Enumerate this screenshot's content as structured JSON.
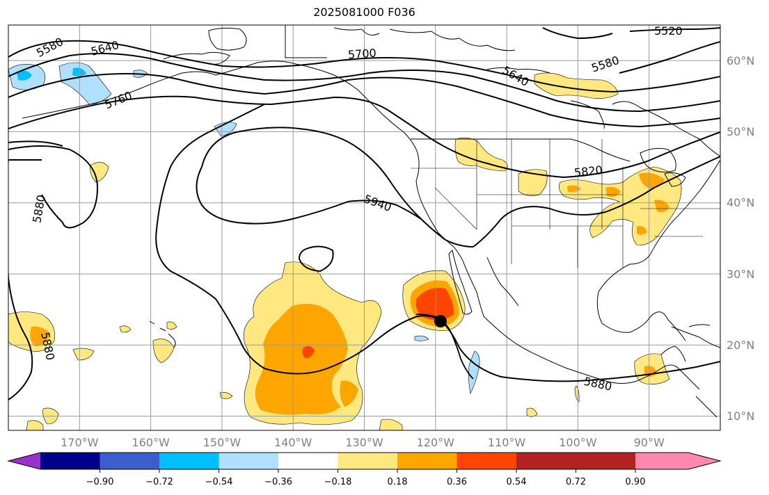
{
  "title": "2025081000 F036",
  "map": {
    "lon_range": [
      -180,
      -80
    ],
    "lat_range": [
      8,
      65
    ],
    "lon_labels": [
      "170°W",
      "160°W",
      "150°W",
      "140°W",
      "130°W",
      "120°W",
      "110°W",
      "100°W",
      "90°W"
    ],
    "lat_labels": [
      "60°N",
      "50°N",
      "40°N",
      "30°N",
      "20°N",
      "10°N"
    ],
    "contour_labels": [
      "5520",
      "5580",
      "5640",
      "5700",
      "5760",
      "5820",
      "5880",
      "5940",
      "5580",
      "5640",
      "5880",
      "5880"
    ],
    "colors": {
      "contour": "#000000",
      "grid": "#9a9a9a",
      "coast": "#000000"
    }
  },
  "colorbar": {
    "ticks": [
      "−0.90",
      "−0.72",
      "−0.54",
      "−0.36",
      "−0.18",
      "0.18",
      "0.36",
      "0.54",
      "0.72",
      "0.90"
    ],
    "bins": [
      "#9b30d0",
      "#00008b",
      "#3a5fcd",
      "#00bfff",
      "#b0e0ff",
      "#ffffff",
      "#ffe880",
      "#ffa500",
      "#ff4500",
      "#b22222",
      "#ff88b0"
    ]
  },
  "storm": {
    "lon": -119,
    "lat": 23.5
  }
}
